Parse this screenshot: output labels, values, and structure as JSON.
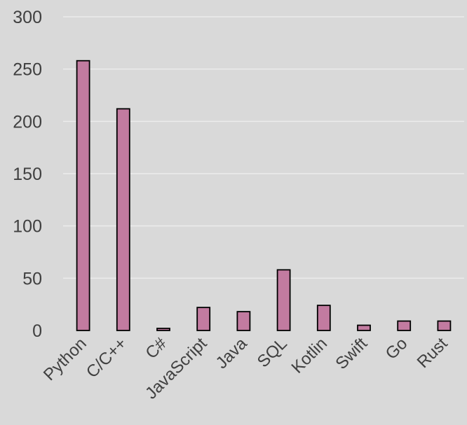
{
  "chart_data": {
    "type": "bar",
    "categories": [
      "Python",
      "C/C++",
      "C#",
      "JavaScript",
      "Java",
      "SQL",
      "Kotlin",
      "Swift",
      "Go",
      "Rust"
    ],
    "values": [
      258,
      212,
      2,
      22,
      18,
      58,
      24,
      5,
      9,
      9
    ],
    "title": "",
    "xlabel": "",
    "ylabel": "",
    "ylim": [
      0,
      300
    ],
    "yticks": [
      0,
      50,
      100,
      150,
      200,
      250,
      300
    ],
    "ytick_labels": [
      "0",
      "50",
      "100",
      "150",
      "200",
      "250",
      "300"
    ],
    "grid": true,
    "legend": "none",
    "colors": {
      "bar": "#c27ba0",
      "background": "#d9d9d9",
      "gridline": "#ececec",
      "text": "#404040"
    }
  }
}
